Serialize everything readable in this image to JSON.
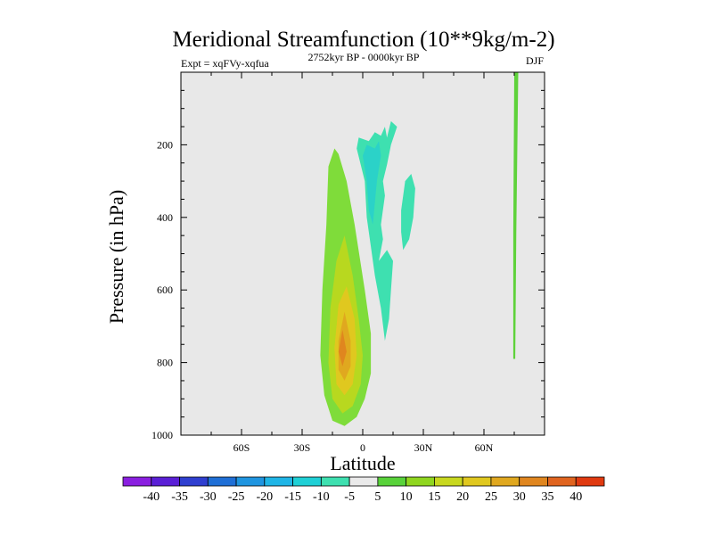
{
  "chart_data": {
    "type": "contour",
    "title": "Meridional Streamfunction (10**9kg/m-2)",
    "subtitle_left": "Expt = xqFVy-xqfua",
    "subtitle_center": "2752kyr BP - 0000kyr BP",
    "subtitle_right": "DJF",
    "xlabel": "Latitude",
    "ylabel": "Pressure (in hPa)",
    "xlim": [
      -90,
      90
    ],
    "ylim": [
      0,
      1000
    ],
    "x_ticks": [
      {
        "value": -60,
        "label": "60S"
      },
      {
        "value": -30,
        "label": "30S"
      },
      {
        "value": 0,
        "label": "0"
      },
      {
        "value": 30,
        "label": "30N"
      },
      {
        "value": 60,
        "label": "60N"
      }
    ],
    "y_ticks": [
      {
        "value": 200,
        "label": "200"
      },
      {
        "value": 400,
        "label": "400"
      },
      {
        "value": 600,
        "label": "600"
      },
      {
        "value": 800,
        "label": "800"
      },
      {
        "value": 1000,
        "label": "1000"
      }
    ],
    "colorbar": {
      "labels": [
        "-40",
        "-35",
        "-30",
        "-25",
        "-20",
        "-15",
        "-10",
        "-5",
        "5",
        "10",
        "15",
        "20",
        "25",
        "30",
        "35",
        "40"
      ],
      "colors": [
        "#8a1fe0",
        "#5a1fd6",
        "#2f3fd0",
        "#1f6fd6",
        "#1f95e0",
        "#1fb5e6",
        "#1fd0d6",
        "#3ee0b0",
        "#eaeaea",
        "#58d23a",
        "#8fd61f",
        "#c8d81f",
        "#e0c81f",
        "#e0a81f",
        "#e0861f",
        "#e0641f",
        "#e03a10"
      ]
    },
    "features": [
      {
        "name": "positive-cell-tropics",
        "colors": [
          "#7fdc3a",
          "#b8d81f",
          "#e0c81f",
          "#e0a81f",
          "#e0861f"
        ],
        "rings": [
          [
            [
              -14,
              210
            ],
            [
              -12,
              225
            ],
            [
              -8,
              300
            ],
            [
              -4,
              420
            ],
            [
              1,
              600
            ],
            [
              4,
              720
            ],
            [
              4,
              830
            ],
            [
              1,
              900
            ],
            [
              -3,
              950
            ],
            [
              -9,
              975
            ],
            [
              -15,
              960
            ],
            [
              -19,
              890
            ],
            [
              -21,
              780
            ],
            [
              -20,
              600
            ],
            [
              -18,
              420
            ],
            [
              -17,
              260
            ]
          ],
          [
            [
              -9,
              450
            ],
            [
              -5,
              560
            ],
            [
              -2,
              680
            ],
            [
              0,
              780
            ],
            [
              -1,
              860
            ],
            [
              -5,
              920
            ],
            [
              -10,
              940
            ],
            [
              -15,
              900
            ],
            [
              -17,
              800
            ],
            [
              -16,
              650
            ],
            [
              -13,
              520
            ]
          ],
          [
            [
              -8,
              590
            ],
            [
              -4,
              680
            ],
            [
              -3,
              780
            ],
            [
              -5,
              860
            ],
            [
              -9,
              890
            ],
            [
              -13,
              860
            ],
            [
              -14,
              760
            ],
            [
              -12,
              640
            ]
          ],
          [
            [
              -9,
              660
            ],
            [
              -6,
              740
            ],
            [
              -6,
              810
            ],
            [
              -9,
              850
            ],
            [
              -12,
              820
            ],
            [
              -12,
              740
            ]
          ],
          [
            [
              -10,
              710
            ],
            [
              -8,
              770
            ],
            [
              -10,
              810
            ],
            [
              -12,
              770
            ]
          ]
        ]
      },
      {
        "name": "positive-line-high-latitude",
        "colors": [
          "#5ed23a"
        ],
        "rings": [
          [
            [
              75,
              0
            ],
            [
              77,
              0
            ],
            [
              76,
              440
            ],
            [
              75.5,
              790
            ],
            [
              74.5,
              790
            ],
            [
              74.5,
              440
            ]
          ]
        ]
      },
      {
        "name": "negative-cell-tropics",
        "colors": [
          "#3ee0b0",
          "#2bd2c8"
        ],
        "rings": [
          [
            [
              -3,
              210
            ],
            [
              -2,
              180
            ],
            [
              3,
              190
            ],
            [
              6,
              165
            ],
            [
              9,
              175
            ],
            [
              11,
              150
            ],
            [
              12,
              180
            ],
            [
              14,
              135
            ],
            [
              17,
              150
            ],
            [
              14,
              200
            ],
            [
              12,
              255
            ],
            [
              10,
              300
            ],
            [
              11,
              340
            ],
            [
              9,
              420
            ],
            [
              10,
              460
            ],
            [
              8,
              520
            ],
            [
              12,
              490
            ],
            [
              15,
              520
            ],
            [
              14,
              600
            ],
            [
              13,
              680
            ],
            [
              11,
              740
            ],
            [
              9,
              650
            ],
            [
              6,
              560
            ],
            [
              4,
              480
            ],
            [
              2,
              400
            ],
            [
              1,
              300
            ]
          ],
          [
            [
              0,
              230
            ],
            [
              2,
              200
            ],
            [
              6,
              210
            ],
            [
              8,
              190
            ],
            [
              9,
              230
            ],
            [
              7,
              300
            ],
            [
              6,
              360
            ],
            [
              5,
              420
            ],
            [
              3,
              380
            ],
            [
              2,
              300
            ]
          ]
        ]
      },
      {
        "name": "negative-blob-20N",
        "colors": [
          "#3ee0b0"
        ],
        "rings": [
          [
            [
              19,
              380
            ],
            [
              21,
              300
            ],
            [
              24,
              280
            ],
            [
              26,
              320
            ],
            [
              25,
              400
            ],
            [
              23,
              460
            ],
            [
              20,
              490
            ],
            [
              19,
              440
            ]
          ]
        ]
      }
    ]
  }
}
